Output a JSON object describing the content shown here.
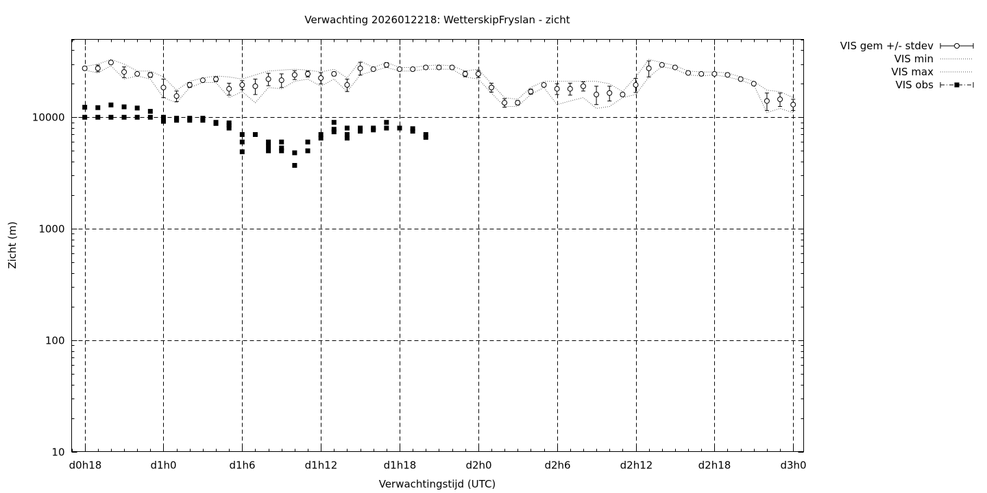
{
  "chart_data": {
    "type": "scatter",
    "title": "Verwachting 2026012218: WetterskipFryslan - zicht",
    "xlabel": "Verwachtingstijd (UTC)",
    "ylabel": "Zicht (m)",
    "xlim": [
      17,
      72.8
    ],
    "ylim": [
      10,
      50000
    ],
    "y_scale": "log",
    "grid": true,
    "legend_position": "outside-right",
    "x_ticks": [
      {
        "value": 18,
        "label": "d0h18"
      },
      {
        "value": 24,
        "label": "d1h0"
      },
      {
        "value": 30,
        "label": "d1h6"
      },
      {
        "value": 36,
        "label": "d1h12"
      },
      {
        "value": 42,
        "label": "d1h18"
      },
      {
        "value": 48,
        "label": "d2h0"
      },
      {
        "value": 54,
        "label": "d2h6"
      },
      {
        "value": 60,
        "label": "d2h12"
      },
      {
        "value": 66,
        "label": "d2h18"
      },
      {
        "value": 72,
        "label": "d3h0"
      }
    ],
    "y_ticks": [
      {
        "value": 10,
        "label": "10"
      },
      {
        "value": 100,
        "label": "100"
      },
      {
        "value": 1000,
        "label": "1000"
      },
      {
        "value": 10000,
        "label": "10000"
      }
    ],
    "legend": [
      {
        "label": "VIS gem +/- stdev",
        "style": "errorbar"
      },
      {
        "label": "VIS min",
        "style": "dotted"
      },
      {
        "label": "VIS max",
        "style": "dotted"
      },
      {
        "label": "VIS obs",
        "style": "dashdot-square"
      }
    ],
    "series": [
      {
        "name": "VIS gem +/- stdev",
        "x": [
          18,
          19,
          20,
          21,
          22,
          23,
          24,
          25,
          26,
          27,
          28,
          29,
          30,
          31,
          32,
          33,
          34,
          35,
          36,
          37,
          38,
          39,
          40,
          41,
          42,
          43,
          44,
          45,
          46,
          47,
          48,
          49,
          50,
          51,
          52,
          53,
          54,
          55,
          56,
          57,
          58,
          59,
          60,
          61,
          62,
          63,
          64,
          65,
          66,
          67,
          68,
          69,
          70,
          71,
          72
        ],
        "y": [
          27500,
          27500,
          31000,
          25500,
          24500,
          24000,
          18500,
          15500,
          19500,
          21500,
          22000,
          18000,
          19500,
          19000,
          22000,
          21500,
          24000,
          24500,
          22500,
          24500,
          19500,
          27500,
          27000,
          29500,
          27000,
          27000,
          28000,
          28000,
          28000,
          24500,
          24500,
          18500,
          13500,
          13500,
          17000,
          19500,
          18000,
          18000,
          19000,
          16000,
          16500,
          16000,
          19500,
          27500,
          29500,
          28000,
          25000,
          24500,
          24500,
          24000,
          22000,
          20000,
          14000,
          14500,
          13000
        ],
        "err": [
          600,
          1900,
          900,
          2800,
          700,
          1200,
          3500,
          1700,
          1000,
          700,
          1100,
          2200,
          1800,
          3000,
          2800,
          3000,
          2200,
          1500,
          2600,
          1000,
          2500,
          3600,
          400,
          1400,
          700,
          700,
          600,
          1000,
          1000,
          1400,
          1800,
          1700,
          1200,
          600,
          900,
          700,
          2000,
          2200,
          1800,
          3000,
          2500,
          600,
          2800,
          4500,
          500,
          600,
          400,
          400,
          400,
          400,
          400,
          300,
          2500,
          2000,
          1500
        ]
      },
      {
        "name": "VIS min",
        "x": [
          18,
          19,
          20,
          21,
          22,
          23,
          24,
          25,
          26,
          27,
          28,
          29,
          30,
          31,
          32,
          33,
          34,
          35,
          36,
          37,
          38,
          39,
          40,
          41,
          42,
          43,
          44,
          45,
          46,
          47,
          48,
          49,
          50,
          51,
          52,
          53,
          54,
          55,
          56,
          57,
          58,
          59,
          60,
          61,
          62,
          63,
          64,
          65,
          66,
          67,
          68,
          69,
          70,
          71,
          72
        ],
        "y": [
          26500,
          25000,
          29000,
          22000,
          23500,
          22000,
          15000,
          13500,
          18500,
          20500,
          20500,
          15000,
          17000,
          13500,
          18500,
          18000,
          21000,
          22000,
          19000,
          22000,
          17000,
          24000,
          26000,
          28000,
          26000,
          26000,
          27000,
          27000,
          27000,
          23000,
          22000,
          16500,
          12500,
          12500,
          16000,
          18500,
          13000,
          14000,
          15000,
          12000,
          12500,
          15000,
          16000,
          23000,
          28500,
          27000,
          24000,
          23500,
          24000,
          23000,
          21500,
          19500,
          11000,
          12000,
          11000
        ]
      },
      {
        "name": "VIS max",
        "x": [
          18,
          19,
          20,
          21,
          22,
          23,
          24,
          25,
          26,
          27,
          28,
          29,
          30,
          31,
          32,
          33,
          34,
          35,
          36,
          37,
          38,
          39,
          40,
          41,
          42,
          43,
          44,
          45,
          46,
          47,
          48,
          49,
          50,
          51,
          52,
          53,
          54,
          55,
          56,
          57,
          58,
          59,
          60,
          61,
          62,
          63,
          64,
          65,
          66,
          67,
          68,
          69,
          70,
          71,
          72
        ],
        "y": [
          28500,
          30000,
          33000,
          30000,
          26000,
          26000,
          23000,
          17500,
          21000,
          22500,
          23500,
          23000,
          22000,
          24000,
          26000,
          26500,
          27000,
          26500,
          25500,
          27000,
          22500,
          32000,
          28000,
          31000,
          28000,
          28000,
          29000,
          29500,
          29000,
          26000,
          27000,
          20000,
          15000,
          14500,
          18500,
          21000,
          21000,
          21000,
          21000,
          21000,
          20000,
          17000,
          23000,
          33000,
          31000,
          29000,
          26000,
          25500,
          25500,
          25000,
          23000,
          21000,
          17500,
          17000,
          15000
        ]
      },
      {
        "name": "VIS obs",
        "x": [
          18,
          18,
          19,
          19,
          20,
          20,
          21,
          21,
          22,
          22,
          23,
          23,
          24,
          24,
          24,
          25,
          25,
          26,
          26,
          27,
          27,
          28,
          28,
          29,
          29,
          29,
          30,
          30,
          30,
          31,
          32,
          32,
          32,
          33,
          33,
          33,
          34,
          34,
          35,
          35,
          36,
          36,
          37,
          37,
          37,
          38,
          38,
          38,
          39,
          39,
          40,
          40,
          41,
          41,
          42,
          43,
          43,
          44,
          44
        ],
        "y": [
          12300,
          10000,
          12200,
          10000,
          12900,
          10000,
          12400,
          10000,
          12100,
          10000,
          11300,
          10000,
          10000,
          9500,
          9200,
          9800,
          9400,
          9800,
          9400,
          9800,
          9400,
          9000,
          8800,
          8900,
          8500,
          8000,
          7000,
          6000,
          4900,
          7000,
          6000,
          5500,
          5000,
          6000,
          5300,
          5000,
          4800,
          3700,
          6000,
          5000,
          7000,
          6500,
          9000,
          7800,
          7400,
          8000,
          7000,
          6500,
          8000,
          7500,
          8000,
          7700,
          9000,
          8000,
          8000,
          7900,
          7500,
          7000,
          6600
        ]
      }
    ]
  }
}
